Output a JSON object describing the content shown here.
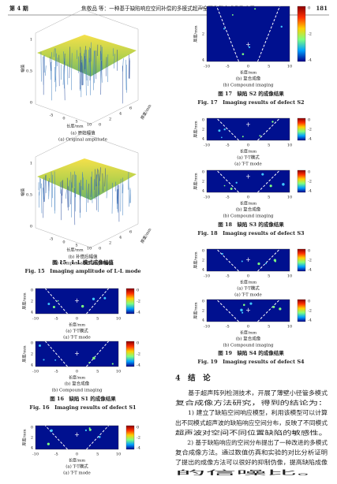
{
  "header": {
    "issue": "第 4 期",
    "title": "焦敬品 等：一种基于缺陷响应空间补偿的多模式超声全聚焦复合成像及应用",
    "page": "181"
  },
  "figure15": {
    "panels": [
      {
        "z_label": "幅值",
        "x_label": "长度/mm",
        "y_label": "厚度/mm",
        "z_ticks": [
          "0",
          "0.5",
          "1"
        ],
        "x_ticks": [
          "-5",
          "0",
          "5",
          "10"
        ],
        "y_ticks": [
          "0",
          "2",
          "4",
          "6"
        ],
        "caption_cn": "(a) 原始幅值",
        "caption_en": "(a) Original amplitude"
      },
      {
        "z_label": "幅值",
        "x_label": "长度/mm",
        "y_label": "厚度/mm",
        "z_ticks": [
          "0",
          "0.5",
          "1"
        ],
        "x_ticks": [
          "-5",
          "0",
          "5",
          "10"
        ],
        "y_ticks": [
          "0",
          "2",
          "4",
          "6"
        ],
        "caption_cn": "(b) 补偿后幅值",
        "caption_en": "(b) Compensated amplitude"
      }
    ],
    "caption_cn": "图 15　L-L 模式成像幅值",
    "caption_en": "Fig. 15　Imaging amplitude of L-L mode"
  },
  "figure16": {
    "panels": [
      {
        "y_label": "厚度/mm",
        "y_ticks": [
          "0",
          "2",
          "4"
        ],
        "x_ticks": [
          "-10",
          "-5",
          "0",
          "5",
          "10"
        ],
        "x_label": "长度/mm",
        "colorbar_ticks": [
          "0",
          "-2",
          "-4"
        ],
        "caption_cn": "(a) T-T模式",
        "caption_en": "(a) T-T mode"
      },
      {
        "y_label": "厚度/mm",
        "y_ticks": [
          "0",
          "2",
          "4"
        ],
        "x_ticks": [
          "-10",
          "-5",
          "0",
          "5",
          "10"
        ],
        "x_label": "长度/mm",
        "colorbar_ticks": [
          "0",
          "-2",
          "-4"
        ],
        "caption_cn": "(b) 复合成像",
        "caption_en": "(b) Compound imaging"
      }
    ],
    "caption_cn": "图 16　缺陷 S1 的成像结果",
    "caption_en": "Fig. 16　Imaging results of defect S1"
  },
  "figure17": {
    "panels": [
      {
        "y_label": "厚度/mm",
        "y_ticks": [
          "0",
          "2",
          "4"
        ],
        "x_ticks": [
          "-10",
          "-5",
          "0",
          "5",
          "10"
        ],
        "x_label": "长度/mm",
        "colorbar_ticks": [
          "0",
          "-2",
          "-4"
        ],
        "caption_cn": "(a) T-T模式",
        "caption_en": "(a) T-T mode"
      },
      {
        "y_label": "厚度/mm",
        "y_ticks": [
          "0",
          "2",
          "4"
        ],
        "x_ticks": [
          "-10",
          "-5",
          "0",
          "5",
          "10"
        ],
        "x_label": "长度/mm",
        "colorbar_ticks": [
          "0",
          "-2",
          "-4"
        ],
        "caption_cn": "(b) 复合成像",
        "caption_en": "(b) Compound imaging"
      }
    ],
    "caption_cn": "图 17　缺陷 S2 的成像结果",
    "caption_en": "Fig. 17　Imaging results of defect S2"
  },
  "figure18": {
    "panels": [
      {
        "y_label": "厚度/mm",
        "y_ticks": [
          "0",
          "2",
          "4"
        ],
        "x_ticks": [
          "-10",
          "-5",
          "0",
          "5",
          "10"
        ],
        "x_label": "长度/mm",
        "colorbar_ticks": [
          "0",
          "-2",
          "-4"
        ],
        "caption_cn": "(a) T-T模式",
        "caption_en": "(a) T-T mode"
      },
      {
        "y_label": "厚度/mm",
        "y_ticks": [
          "0",
          "2",
          "4"
        ],
        "x_ticks": [
          "-10",
          "-5",
          "0",
          "5",
          "10"
        ],
        "x_label": "长度/mm",
        "colorbar_ticks": [
          "0",
          "-2",
          "-4"
        ],
        "caption_cn": "(b) 复合成像",
        "caption_en": "(b) Compound imaging"
      }
    ],
    "caption_cn": "图 18　缺陷 S3 的成像结果",
    "caption_en": "Fig. 18　Imaging results of defect S3"
  },
  "figure19": {
    "panels": [
      {
        "y_label": "厚度/mm",
        "y_ticks": [
          "0",
          "2",
          "4"
        ],
        "x_ticks": [
          "-10",
          "-5",
          "0",
          "5",
          "10"
        ],
        "x_label": "长度/mm",
        "colorbar_ticks": [
          "0",
          "-2",
          "-4"
        ],
        "caption_cn": "(a) T-T模式",
        "caption_en": "(a) T-T mode"
      },
      {
        "y_label": "厚度/mm",
        "y_ticks": [
          "0",
          "2",
          "4"
        ],
        "x_ticks": [
          "-10",
          "-5",
          "0",
          "5",
          "10"
        ],
        "x_label": "长度/mm",
        "colorbar_ticks": [
          "0",
          "-2",
          "-4"
        ],
        "caption_cn": "(b) 复合成像",
        "caption_en": "(b) Compound imaging"
      }
    ],
    "caption_cn": "图 19　缺陷 S4 的成像结果",
    "caption_en": "Fig. 19　Imaging results of defect S4"
  },
  "section": {
    "heading": "4　结　论",
    "lines": [
      "　　基于超声阵列检测技术，开展了薄壁小径管多模式",
      "复合成像方法研究，得到的结论为：",
      "　　1) 建立了缺陷空间响应模型，利用该模型可以计算",
      "出不同模式超声波的缺陷响应空间分布，反映了不同模式",
      "超声波对空间不同位置缺陷的敏感性。",
      "　　2) 基于缺陷响应的空间分布提出了一种改进的多模式",
      "复合成像方法。通过数值仿真和实验的对比分析证明",
      "了提出的成像方法可以很好的抑制伪像，提高缺陷成像",
      "的信噪比。"
    ]
  }
}
